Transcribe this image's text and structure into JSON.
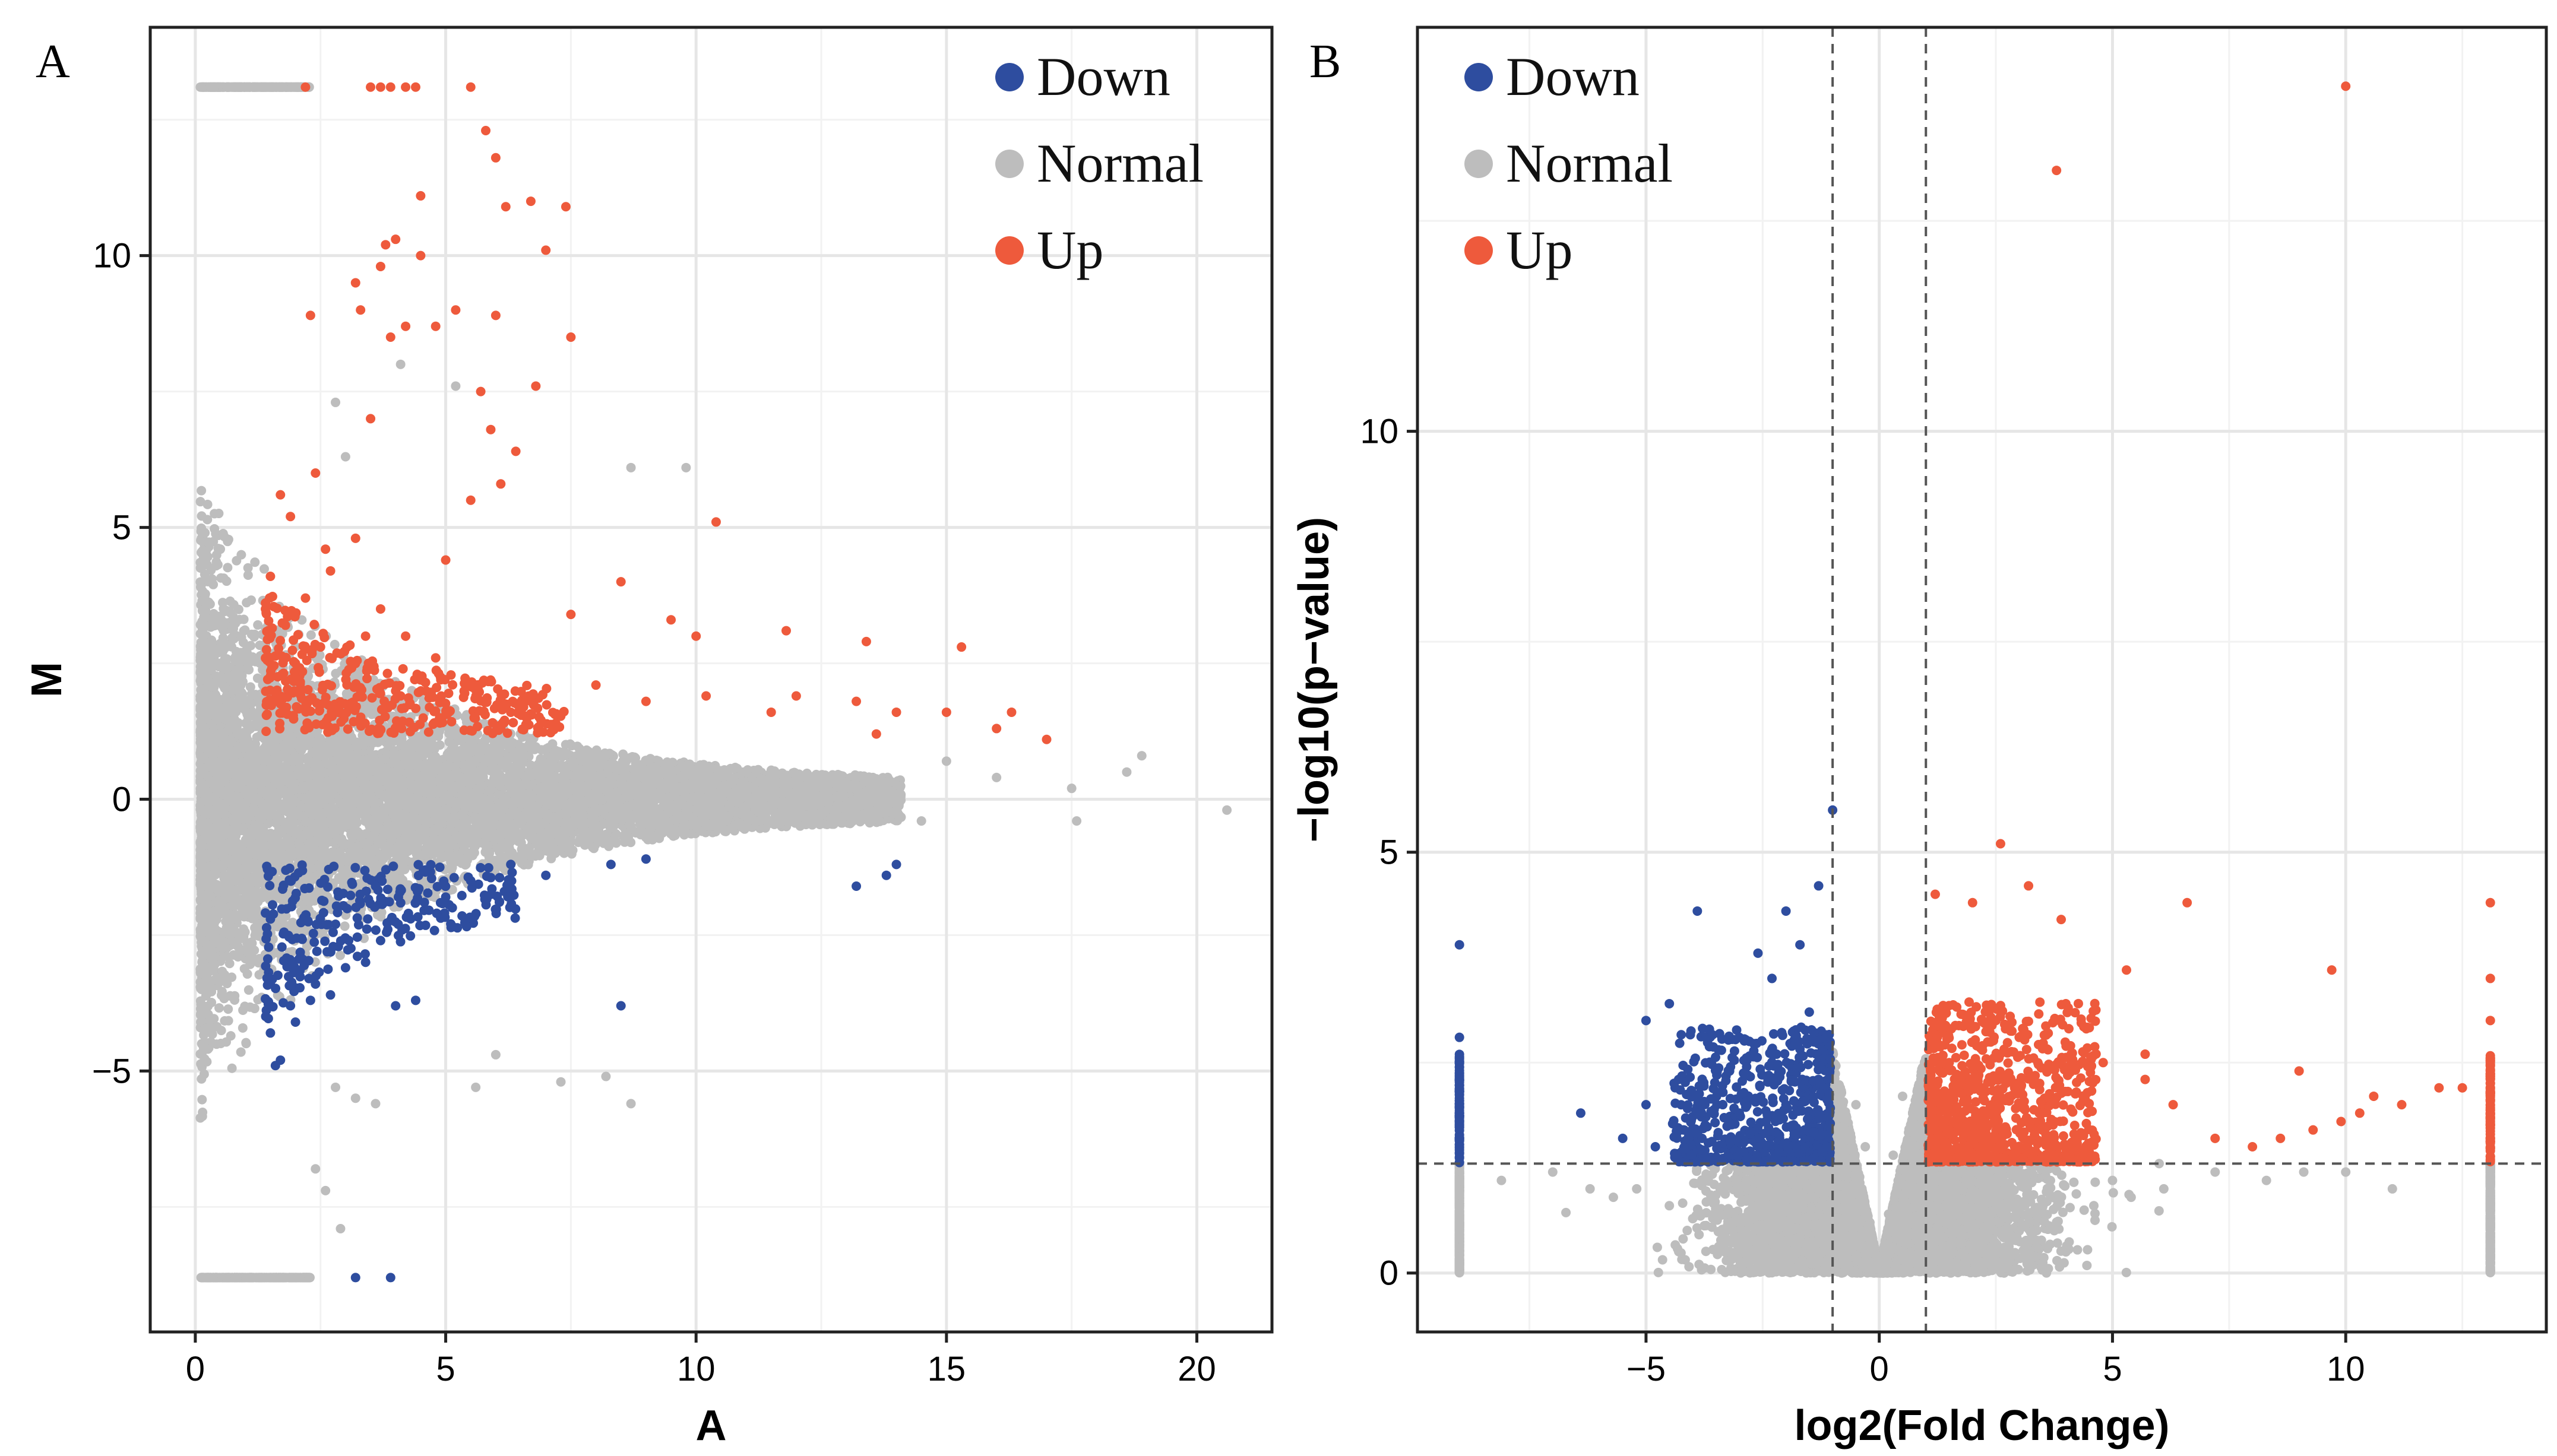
{
  "chart_data": [
    {
      "type": "scatter",
      "panel_label": "A",
      "title": "",
      "xlabel": "A",
      "ylabel": "M",
      "xlim": [
        -0.9,
        21.5
      ],
      "ylim": [
        -9.8,
        14.2
      ],
      "xticks": [
        0,
        5,
        10,
        15,
        20
      ],
      "yticks": [
        -5,
        0,
        5,
        10
      ],
      "grid": true,
      "legend_position": "top-right",
      "legend": [
        {
          "label": "Down",
          "color": "#2e4d9f"
        },
        {
          "label": "Normal",
          "color": "#bdbdbd"
        },
        {
          "label": "Up",
          "color": "#ee5a3c"
        }
      ],
      "series": [
        {
          "name": "Up",
          "color": "#ee5a3c",
          "points": [
            [
              5.5,
              13.1
            ],
            [
              5.8,
              12.3
            ],
            [
              6.0,
              11.8
            ],
            [
              4.5,
              11.1
            ],
            [
              6.7,
              11.0
            ],
            [
              7.4,
              10.9
            ],
            [
              6.2,
              10.9
            ],
            [
              4.0,
              10.3
            ],
            [
              3.8,
              10.2
            ],
            [
              4.5,
              10.0
            ],
            [
              7.0,
              10.1
            ],
            [
              3.7,
              9.8
            ],
            [
              3.2,
              9.5
            ],
            [
              3.3,
              9.0
            ],
            [
              5.2,
              9.0
            ],
            [
              6.0,
              8.9
            ],
            [
              4.8,
              8.7
            ],
            [
              2.3,
              8.9
            ],
            [
              3.9,
              8.5
            ],
            [
              7.5,
              8.5
            ],
            [
              4.2,
              8.7
            ],
            [
              5.7,
              7.5
            ],
            [
              6.8,
              7.6
            ],
            [
              3.5,
              7.0
            ],
            [
              5.9,
              6.8
            ],
            [
              6.4,
              6.4
            ],
            [
              2.4,
              6.0
            ],
            [
              1.7,
              5.6
            ],
            [
              1.9,
              5.2
            ],
            [
              5.5,
              5.5
            ],
            [
              6.1,
              5.8
            ],
            [
              10.4,
              5.1
            ],
            [
              2.6,
              4.6
            ],
            [
              5.0,
              4.4
            ],
            [
              3.2,
              4.8
            ],
            [
              8.5,
              4.0
            ],
            [
              1.5,
              4.1
            ],
            [
              2.7,
              4.2
            ],
            [
              2.2,
              3.7
            ],
            [
              7.5,
              3.4
            ],
            [
              3.7,
              3.5
            ],
            [
              9.5,
              3.3
            ],
            [
              4.2,
              3.0
            ],
            [
              10.0,
              3.0
            ],
            [
              11.8,
              3.1
            ],
            [
              13.4,
              2.9
            ],
            [
              1.8,
              3.2
            ],
            [
              3.4,
              3.0
            ],
            [
              15.3,
              2.8
            ],
            [
              4.8,
              2.6
            ],
            [
              2.0,
              2.5
            ],
            [
              2.5,
              2.8
            ],
            [
              3.3,
              2.0
            ],
            [
              5.4,
              2.2
            ],
            [
              8.0,
              2.1
            ],
            [
              10.2,
              1.9
            ],
            [
              12.0,
              1.9
            ],
            [
              11.5,
              1.6
            ],
            [
              13.2,
              1.8
            ],
            [
              14.0,
              1.6
            ],
            [
              15.0,
              1.6
            ],
            [
              16.3,
              1.6
            ],
            [
              17.0,
              1.1
            ],
            [
              16.0,
              1.3
            ],
            [
              13.6,
              1.2
            ],
            [
              2.8,
              1.7
            ],
            [
              4.1,
              1.9
            ],
            [
              6.3,
              1.6
            ],
            [
              9.0,
              1.8
            ],
            [
              3.9,
              13.1
            ],
            [
              4.2,
              13.1
            ],
            [
              4.4,
              13.1
            ],
            [
              3.7,
              13.1
            ],
            [
              3.5,
              13.1
            ],
            [
              2.2,
              13.1
            ]
          ]
        },
        {
          "name": "Down",
          "color": "#2e4d9f",
          "points": [
            [
              1.5,
              -4.3
            ],
            [
              1.7,
              -4.8
            ],
            [
              2.0,
              -4.1
            ],
            [
              2.4,
              -3.4
            ],
            [
              2.7,
              -3.6
            ],
            [
              3.0,
              -3.1
            ],
            [
              3.4,
              -3.0
            ],
            [
              4.0,
              -3.8
            ],
            [
              4.4,
              -3.7
            ],
            [
              3.7,
              -2.6
            ],
            [
              4.3,
              -2.2
            ],
            [
              5.0,
              -1.8
            ],
            [
              5.5,
              -1.5
            ],
            [
              6.3,
              -1.2
            ],
            [
              7.0,
              -1.4
            ],
            [
              8.3,
              -1.2
            ],
            [
              9.0,
              -1.1
            ],
            [
              13.2,
              -1.6
            ],
            [
              14.0,
              -1.2
            ],
            [
              13.8,
              -1.4
            ],
            [
              8.5,
              -3.8
            ],
            [
              2.3,
              -3.7
            ],
            [
              3.2,
              -8.8
            ],
            [
              3.9,
              -8.8
            ],
            [
              2.1,
              -2.9
            ],
            [
              2.8,
              -2.3
            ],
            [
              3.6,
              -1.6
            ],
            [
              4.6,
              -1.3
            ],
            [
              1.6,
              -4.9
            ],
            [
              1.9,
              -3.8
            ]
          ]
        },
        {
          "name": "Normal",
          "color": "#bdbdbd",
          "points": [
            [
              5.6,
              -5.3
            ],
            [
              7.3,
              -5.2
            ],
            [
              8.7,
              -5.6
            ],
            [
              8.2,
              -5.1
            ],
            [
              2.4,
              -6.8
            ],
            [
              2.8,
              -5.3
            ],
            [
              3.2,
              -5.5
            ],
            [
              3.6,
              -5.6
            ],
            [
              2.6,
              -7.2
            ],
            [
              2.9,
              -7.9
            ],
            [
              6.0,
              -4.7
            ],
            [
              9.8,
              6.1
            ],
            [
              8.7,
              6.1
            ],
            [
              2.8,
              7.3
            ],
            [
              3.0,
              6.3
            ],
            [
              4.1,
              8.0
            ],
            [
              5.2,
              7.6
            ],
            [
              18.9,
              0.8
            ],
            [
              20.6,
              -0.2
            ],
            [
              17.5,
              0.2
            ],
            [
              17.6,
              -0.4
            ],
            [
              18.6,
              0.5
            ],
            [
              14.5,
              -0.4
            ],
            [
              15.0,
              0.7
            ],
            [
              16.0,
              0.4
            ]
          ]
        }
      ]
    },
    {
      "type": "scatter",
      "panel_label": "B",
      "title": "",
      "xlabel": "log2(Fold Change)",
      "ylabel": "−log10(p−value)",
      "xlim": [
        -9.9,
        14.3
      ],
      "ylim": [
        -0.7,
        14.8
      ],
      "xticks": [
        -5,
        0,
        5,
        10
      ],
      "xtick_labels": [
        "−5",
        "0",
        "5",
        "10"
      ],
      "yticks": [
        0,
        5,
        10
      ],
      "grid": true,
      "legend_position": "top-left",
      "thresholds": {
        "vertical": [
          -1,
          1
        ],
        "horizontal": 1.3
      },
      "legend": [
        {
          "label": "Down",
          "color": "#2e4d9f"
        },
        {
          "label": "Normal",
          "color": "#bdbdbd"
        },
        {
          "label": "Up",
          "color": "#ee5a3c"
        }
      ],
      "series": [
        {
          "name": "Up",
          "color": "#ee5a3c",
          "points": [
            [
              10.0,
              14.1
            ],
            [
              3.8,
              13.1
            ],
            [
              2.6,
              5.1
            ],
            [
              1.2,
              4.5
            ],
            [
              2.0,
              4.4
            ],
            [
              3.2,
              4.6
            ],
            [
              3.9,
              4.2
            ],
            [
              6.6,
              4.4
            ],
            [
              5.3,
              3.6
            ],
            [
              4.0,
              3.2
            ],
            [
              2.5,
              3.0
            ],
            [
              3.0,
              2.8
            ],
            [
              4.8,
              2.5
            ],
            [
              5.7,
              2.3
            ],
            [
              6.3,
              2.0
            ],
            [
              7.2,
              1.6
            ],
            [
              8.0,
              1.5
            ],
            [
              8.6,
              1.6
            ],
            [
              9.3,
              1.7
            ],
            [
              9.9,
              1.8
            ],
            [
              10.3,
              1.9
            ],
            [
              11.2,
              2.0
            ],
            [
              12.0,
              2.2
            ],
            [
              12.5,
              2.2
            ],
            [
              9.7,
              3.6
            ],
            [
              9.0,
              2.4
            ],
            [
              10.6,
              2.1
            ],
            [
              5.7,
              2.6
            ],
            [
              4.1,
              2.7
            ],
            [
              1.5,
              2.5
            ],
            [
              2.2,
              2.2
            ],
            [
              3.5,
              1.9
            ],
            [
              1.8,
              1.6
            ],
            [
              2.9,
              1.5
            ],
            [
              1.3,
              1.8
            ],
            [
              13.1,
              4.4
            ],
            [
              13.1,
              3.5
            ],
            [
              13.1,
              3.0
            ],
            [
              13.1,
              2.5
            ],
            [
              13.1,
              2.0
            ],
            [
              13.1,
              1.6
            ]
          ]
        },
        {
          "name": "Down",
          "color": "#2e4d9f",
          "points": [
            [
              -1.0,
              5.5
            ],
            [
              -1.3,
              4.6
            ],
            [
              -2.0,
              4.3
            ],
            [
              -2.6,
              3.8
            ],
            [
              -3.9,
              4.3
            ],
            [
              -1.7,
              3.9
            ],
            [
              -2.3,
              3.5
            ],
            [
              -4.5,
              3.2
            ],
            [
              -5.0,
              3.0
            ],
            [
              -1.5,
              3.1
            ],
            [
              -3.0,
              2.8
            ],
            [
              -2.2,
              2.6
            ],
            [
              -3.5,
              2.4
            ],
            [
              -4.3,
              2.3
            ],
            [
              -5.0,
              2.0
            ],
            [
              -6.4,
              1.9
            ],
            [
              -4.2,
              1.7
            ],
            [
              -3.0,
              1.9
            ],
            [
              -2.0,
              2.0
            ],
            [
              -1.3,
              2.3
            ],
            [
              -5.5,
              1.6
            ],
            [
              -4.8,
              1.5
            ],
            [
              -3.8,
              1.6
            ],
            [
              -2.6,
              1.5
            ],
            [
              -1.6,
              1.7
            ],
            [
              -9.0,
              3.9
            ],
            [
              -9.0,
              2.8
            ],
            [
              -9.0,
              2.3
            ],
            [
              -9.0,
              1.9
            ],
            [
              -9.0,
              1.5
            ]
          ]
        },
        {
          "name": "Normal",
          "color": "#bdbdbd",
          "points": [
            [
              -9.0,
              1.1
            ],
            [
              -9.0,
              0.7
            ],
            [
              -9.0,
              0.3
            ],
            [
              -9.0,
              0.1
            ],
            [
              13.1,
              1.1
            ],
            [
              13.1,
              0.6
            ],
            [
              13.1,
              0.2
            ],
            [
              -8.1,
              1.1
            ],
            [
              -7.0,
              1.2
            ],
            [
              -6.2,
              1.0
            ],
            [
              -5.7,
              0.9
            ],
            [
              -5.2,
              1.0
            ],
            [
              -4.5,
              0.8
            ],
            [
              -3.8,
              0.7
            ],
            [
              -3.0,
              0.6
            ],
            [
              -2.2,
              0.4
            ],
            [
              -1.5,
              0.3
            ],
            [
              -0.7,
              0.1
            ],
            [
              0.6,
              0.2
            ],
            [
              1.4,
              0.3
            ],
            [
              2.2,
              0.4
            ],
            [
              3.0,
              0.5
            ],
            [
              3.8,
              0.6
            ],
            [
              4.6,
              0.8
            ],
            [
              5.4,
              0.9
            ],
            [
              6.1,
              1.0
            ],
            [
              7.2,
              1.2
            ],
            [
              8.3,
              1.1
            ],
            [
              9.1,
              1.2
            ],
            [
              10.0,
              1.2
            ],
            [
              11.0,
              1.0
            ],
            [
              -0.5,
              2.0
            ],
            [
              0.5,
              2.1
            ],
            [
              -0.3,
              1.5
            ],
            [
              0.3,
              1.4
            ],
            [
              0.0,
              0.2
            ],
            [
              -0.2,
              0.6
            ],
            [
              0.2,
              0.7
            ],
            [
              6.0,
              1.3
            ],
            [
              5.0,
              1.1
            ]
          ]
        }
      ]
    }
  ]
}
